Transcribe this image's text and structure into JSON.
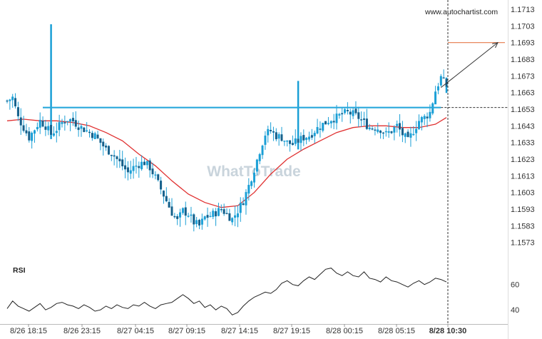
{
  "source_label": "www.autochartist.com",
  "watermark": "WhatToTrade",
  "rsi_label": "RSI",
  "colors": {
    "candle": "#1a9fd6",
    "ma": "#e03030",
    "level": "#29a8dc",
    "target": "#e67a4a",
    "axis_text": "#333333",
    "rsi": "#222222",
    "watermark": "#c9d4dc"
  },
  "chart_data": [
    {
      "type": "candlestick",
      "title": "",
      "x_tick_labels": [
        "8/26 18:15",
        "8/26 23:15",
        "8/27 04:15",
        "8/27 09:15",
        "8/27 14:15",
        "8/27 19:15",
        "8/28 00:15",
        "8/28 05:15",
        "8/28 10:30"
      ],
      "y_tick_labels": [
        "1.1713",
        "1.1703",
        "1.1693",
        "1.1683",
        "1.1673",
        "1.1663",
        "1.1653",
        "1.1643",
        "1.1633",
        "1.1623",
        "1.1613",
        "1.1603",
        "1.1593",
        "1.1583",
        "1.1573"
      ],
      "ylim": [
        1.1566,
        1.1716
      ],
      "close_path": [
        [
          0,
          1.1658
        ],
        [
          2,
          1.166
        ],
        [
          4,
          1.1648
        ],
        [
          6,
          1.1642
        ],
        [
          8,
          1.1636
        ],
        [
          10,
          1.1641
        ],
        [
          12,
          1.1646
        ],
        [
          14,
          1.1643
        ],
        [
          16,
          1.1638
        ],
        [
          18,
          1.1641
        ],
        [
          20,
          1.1645
        ],
        [
          22,
          1.1647
        ],
        [
          24,
          1.1646
        ],
        [
          26,
          1.1643
        ],
        [
          28,
          1.1641
        ],
        [
          30,
          1.1639
        ],
        [
          32,
          1.1637
        ],
        [
          34,
          1.1633
        ],
        [
          36,
          1.1629
        ],
        [
          38,
          1.1627
        ],
        [
          40,
          1.1623
        ],
        [
          42,
          1.1619
        ],
        [
          44,
          1.1615
        ],
        [
          46,
          1.1618
        ],
        [
          48,
          1.162
        ],
        [
          50,
          1.1621
        ],
        [
          52,
          1.1618
        ],
        [
          54,
          1.1612
        ],
        [
          56,
          1.1605
        ],
        [
          58,
          1.1598
        ],
        [
          60,
          1.1591
        ],
        [
          62,
          1.1586
        ],
        [
          64,
          1.1592
        ],
        [
          66,
          1.159
        ],
        [
          68,
          1.1585
        ],
        [
          70,
          1.1583
        ],
        [
          72,
          1.1588
        ],
        [
          74,
          1.1589
        ],
        [
          76,
          1.1591
        ],
        [
          78,
          1.1593
        ],
        [
          80,
          1.159
        ],
        [
          82,
          1.1587
        ],
        [
          84,
          1.1592
        ],
        [
          86,
          1.1598
        ],
        [
          88,
          1.1607
        ],
        [
          90,
          1.1617
        ],
        [
          92,
          1.1628
        ],
        [
          94,
          1.1638
        ],
        [
          96,
          1.164
        ],
        [
          98,
          1.1637
        ],
        [
          100,
          1.1636
        ],
        [
          102,
          1.1633
        ],
        [
          104,
          1.1632
        ],
        [
          106,
          1.1634
        ],
        [
          108,
          1.1636
        ],
        [
          110,
          1.1637
        ],
        [
          112,
          1.164
        ],
        [
          114,
          1.1643
        ],
        [
          116,
          1.1645
        ],
        [
          118,
          1.1647
        ],
        [
          120,
          1.1648
        ],
        [
          122,
          1.165
        ],
        [
          124,
          1.1651
        ],
        [
          126,
          1.165
        ],
        [
          128,
          1.1648
        ],
        [
          130,
          1.1645
        ],
        [
          132,
          1.1642
        ],
        [
          134,
          1.1642
        ],
        [
          136,
          1.1641
        ],
        [
          138,
          1.1638
        ],
        [
          140,
          1.164
        ],
        [
          142,
          1.1643
        ],
        [
          144,
          1.1638
        ],
        [
          146,
          1.1634
        ],
        [
          148,
          1.164
        ],
        [
          150,
          1.1646
        ],
        [
          152,
          1.1648
        ],
        [
          154,
          1.1651
        ],
        [
          156,
          1.1664
        ],
        [
          158,
          1.1672
        ],
        [
          160,
          1.1667
        ]
      ],
      "spikes": [
        [
          16,
          1.1704
        ],
        [
          106,
          1.167
        ],
        [
          160,
          1.1672
        ]
      ],
      "moving_average": [
        [
          0,
          1.1646
        ],
        [
          6,
          1.1647
        ],
        [
          12,
          1.1646
        ],
        [
          18,
          1.1646
        ],
        [
          24,
          1.1645
        ],
        [
          30,
          1.1643
        ],
        [
          36,
          1.1639
        ],
        [
          42,
          1.1634
        ],
        [
          48,
          1.1626
        ],
        [
          54,
          1.1619
        ],
        [
          60,
          1.161
        ],
        [
          66,
          1.1602
        ],
        [
          72,
          1.1597
        ],
        [
          78,
          1.1594
        ],
        [
          84,
          1.1595
        ],
        [
          90,
          1.1603
        ],
        [
          96,
          1.1614
        ],
        [
          102,
          1.1623
        ],
        [
          108,
          1.1629
        ],
        [
          114,
          1.1634
        ],
        [
          120,
          1.1639
        ],
        [
          126,
          1.1642
        ],
        [
          132,
          1.1643
        ],
        [
          138,
          1.1643
        ],
        [
          144,
          1.1642
        ],
        [
          150,
          1.1642
        ],
        [
          156,
          1.1644
        ],
        [
          160,
          1.1648
        ]
      ],
      "support_level": 1.1654,
      "target_level": 1.1693,
      "breakout_index": 158,
      "arrow": {
        "from": [
          158,
          1.1666
        ],
        "to": [
          173,
          1.1693
        ]
      }
    },
    {
      "type": "line",
      "title": "RSI",
      "y_tick_labels": [
        "60",
        "40"
      ],
      "ylim": [
        30,
        75
      ],
      "values": [
        [
          0,
          41
        ],
        [
          2,
          47
        ],
        [
          4,
          43
        ],
        [
          6,
          41
        ],
        [
          8,
          39
        ],
        [
          10,
          42
        ],
        [
          12,
          45
        ],
        [
          14,
          40
        ],
        [
          16,
          42
        ],
        [
          18,
          45
        ],
        [
          20,
          46
        ],
        [
          22,
          44
        ],
        [
          24,
          43
        ],
        [
          26,
          41
        ],
        [
          28,
          44
        ],
        [
          30,
          42
        ],
        [
          32,
          39
        ],
        [
          34,
          40
        ],
        [
          36,
          43
        ],
        [
          38,
          41
        ],
        [
          40,
          44
        ],
        [
          42,
          42
        ],
        [
          44,
          41
        ],
        [
          46,
          44
        ],
        [
          48,
          43
        ],
        [
          50,
          46
        ],
        [
          52,
          43
        ],
        [
          54,
          41
        ],
        [
          56,
          44
        ],
        [
          58,
          45
        ],
        [
          60,
          46
        ],
        [
          62,
          49
        ],
        [
          64,
          52
        ],
        [
          66,
          49
        ],
        [
          68,
          45
        ],
        [
          70,
          47
        ],
        [
          72,
          42
        ],
        [
          74,
          44
        ],
        [
          76,
          40
        ],
        [
          78,
          43
        ],
        [
          80,
          41
        ],
        [
          82,
          36
        ],
        [
          84,
          38
        ],
        [
          86,
          43
        ],
        [
          88,
          47
        ],
        [
          90,
          50
        ],
        [
          92,
          52
        ],
        [
          94,
          54
        ],
        [
          96,
          53
        ],
        [
          98,
          56
        ],
        [
          100,
          61
        ],
        [
          102,
          63
        ],
        [
          104,
          60
        ],
        [
          106,
          59
        ],
        [
          108,
          63
        ],
        [
          110,
          66
        ],
        [
          112,
          64
        ],
        [
          114,
          68
        ],
        [
          116,
          72
        ],
        [
          118,
          73
        ],
        [
          120,
          69
        ],
        [
          122,
          67
        ],
        [
          124,
          70
        ],
        [
          126,
          67
        ],
        [
          128,
          66
        ],
        [
          130,
          70
        ],
        [
          132,
          65
        ],
        [
          134,
          64
        ],
        [
          136,
          62
        ],
        [
          138,
          66
        ],
        [
          140,
          63
        ],
        [
          142,
          62
        ],
        [
          144,
          60
        ],
        [
          146,
          58
        ],
        [
          148,
          61
        ],
        [
          150,
          63
        ],
        [
          152,
          60
        ],
        [
          154,
          62
        ],
        [
          156,
          65
        ],
        [
          158,
          64
        ],
        [
          160,
          62
        ]
      ]
    }
  ]
}
